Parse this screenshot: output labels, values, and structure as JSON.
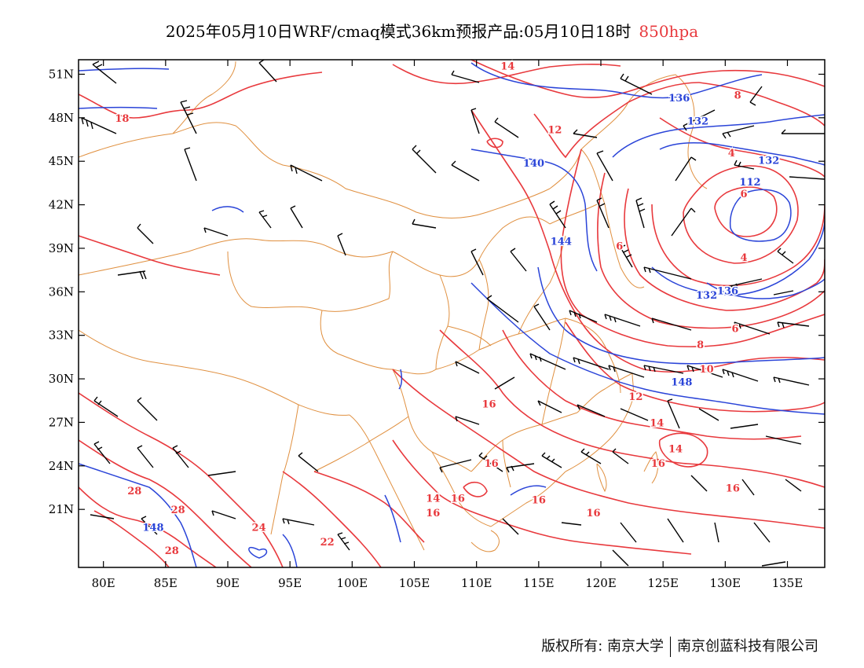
{
  "title": {
    "main": "2025年05月10日WRF/cmaq模式36km预报产品:05月10日18时",
    "level": "850hpa"
  },
  "colors": {
    "temperature": "#e8393d",
    "geopotential": "#2a44d8",
    "boundary": "#e09040",
    "wind": "#000000",
    "frame": "#000000"
  },
  "map": {
    "lon_range": [
      78,
      138
    ],
    "lat_range": [
      17,
      52
    ],
    "lon_ticks": [
      "80E",
      "85E",
      "90E",
      "95E",
      "100E",
      "105E",
      "110E",
      "115E",
      "120E",
      "125E",
      "130E",
      "135E"
    ],
    "lon_values": [
      80,
      85,
      90,
      95,
      100,
      105,
      110,
      115,
      120,
      125,
      130,
      135
    ],
    "lat_ticks": [
      "21N",
      "24N",
      "27N",
      "30N",
      "33N",
      "36N",
      "39N",
      "42N",
      "45N",
      "48N",
      "51N"
    ],
    "lat_values": [
      21,
      24,
      27,
      30,
      33,
      36,
      39,
      42,
      45,
      48,
      51
    ]
  },
  "temp_labels": [
    {
      "text": "14",
      "lon": 112.5,
      "lat": 51.6
    },
    {
      "text": "18",
      "lon": 81.5,
      "lat": 48.0
    },
    {
      "text": "12",
      "lon": 116.3,
      "lat": 47.2
    },
    {
      "text": "8",
      "lon": 131.0,
      "lat": 49.6
    },
    {
      "text": "4",
      "lon": 130.5,
      "lat": 45.6
    },
    {
      "text": "6",
      "lon": 131.5,
      "lat": 42.8
    },
    {
      "text": "6",
      "lon": 121.5,
      "lat": 39.2
    },
    {
      "text": "4",
      "lon": 131.5,
      "lat": 38.4
    },
    {
      "text": "6",
      "lon": 130.8,
      "lat": 33.5
    },
    {
      "text": "8",
      "lon": 128.0,
      "lat": 32.4
    },
    {
      "text": "10",
      "lon": 128.5,
      "lat": 30.7
    },
    {
      "text": "12",
      "lon": 122.8,
      "lat": 28.8
    },
    {
      "text": "14",
      "lon": 124.5,
      "lat": 27.0
    },
    {
      "text": "14",
      "lon": 126.0,
      "lat": 25.2
    },
    {
      "text": "16",
      "lon": 124.6,
      "lat": 24.2
    },
    {
      "text": "16",
      "lon": 130.6,
      "lat": 22.5
    },
    {
      "text": "16",
      "lon": 119.4,
      "lat": 20.8
    },
    {
      "text": "16",
      "lon": 111.0,
      "lat": 28.3
    },
    {
      "text": "16",
      "lon": 111.2,
      "lat": 24.2
    },
    {
      "text": "16",
      "lon": 108.5,
      "lat": 21.8
    },
    {
      "text": "16",
      "lon": 115.0,
      "lat": 21.7
    },
    {
      "text": "14",
      "lon": 106.5,
      "lat": 21.8
    },
    {
      "text": "16",
      "lon": 106.5,
      "lat": 20.8
    },
    {
      "text": "28",
      "lon": 82.5,
      "lat": 22.3
    },
    {
      "text": "28",
      "lon": 86.0,
      "lat": 21.0
    },
    {
      "text": "24",
      "lon": 92.5,
      "lat": 19.8
    },
    {
      "text": "22",
      "lon": 98.0,
      "lat": 18.8
    },
    {
      "text": "28",
      "lon": 85.5,
      "lat": 18.2
    }
  ],
  "height_labels": [
    {
      "text": "136",
      "lon": 126.3,
      "lat": 49.4
    },
    {
      "text": "132",
      "lon": 127.8,
      "lat": 47.8
    },
    {
      "text": "132",
      "lon": 133.5,
      "lat": 45.1
    },
    {
      "text": "112",
      "lon": 132.0,
      "lat": 43.6
    },
    {
      "text": "140",
      "lon": 114.6,
      "lat": 44.9
    },
    {
      "text": "144",
      "lon": 116.8,
      "lat": 39.5
    },
    {
      "text": "132",
      "lon": 128.5,
      "lat": 35.8
    },
    {
      "text": "136",
      "lon": 130.2,
      "lat": 36.1
    },
    {
      "text": "148",
      "lon": 126.5,
      "lat": 29.8
    },
    {
      "text": "148",
      "lon": 84.0,
      "lat": 19.8
    }
  ]
}
